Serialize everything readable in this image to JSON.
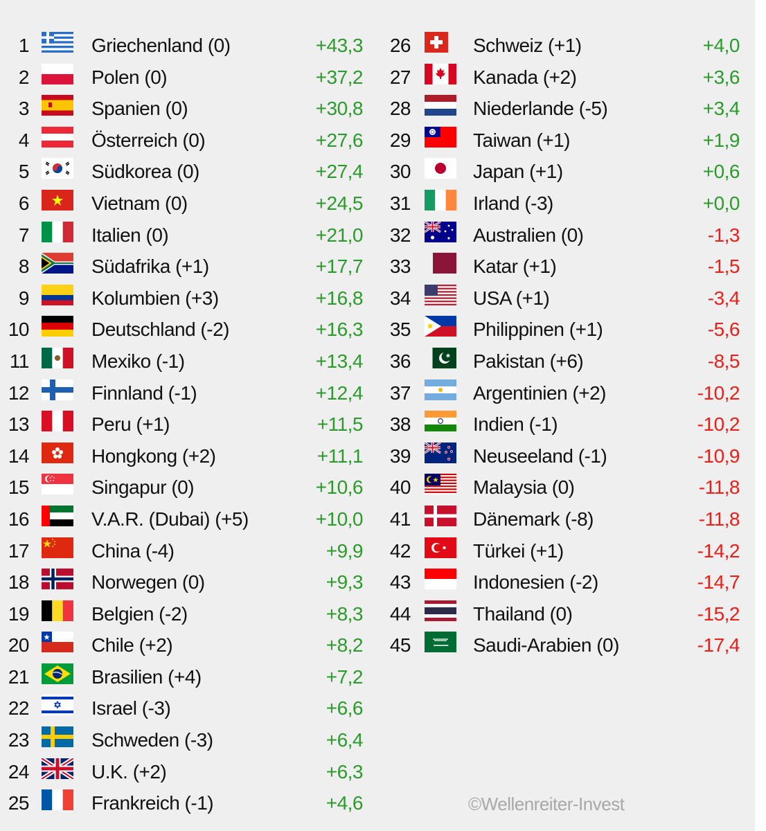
{
  "ranking": [
    {
      "rank": "1",
      "name": "Griechenland (0)",
      "value": "+43,3",
      "flag": "greece-flag-icon"
    },
    {
      "rank": "2",
      "name": "Polen (0)",
      "value": "+37,2",
      "flag": "poland-flag-icon"
    },
    {
      "rank": "3",
      "name": "Spanien (0)",
      "value": "+30,8",
      "flag": "spain-flag-icon"
    },
    {
      "rank": "4",
      "name": "Österreich (0)",
      "value": "+27,6",
      "flag": "austria-flag-icon"
    },
    {
      "rank": "5",
      "name": "Südkorea (0)",
      "value": "+27,4",
      "flag": "south-korea-flag-icon"
    },
    {
      "rank": "6",
      "name": "Vietnam (0)",
      "value": "+24,5",
      "flag": "vietnam-flag-icon"
    },
    {
      "rank": "7",
      "name": "Italien (0)",
      "value": "+21,0",
      "flag": "italy-flag-icon"
    },
    {
      "rank": "8",
      "name": "Südafrika (+1)",
      "value": "+17,7",
      "flag": "south-africa-flag-icon"
    },
    {
      "rank": "9",
      "name": "Kolumbien (+3)",
      "value": "+16,8",
      "flag": "colombia-flag-icon"
    },
    {
      "rank": "10",
      "name": "Deutschland (-2)",
      "value": "+16,3",
      "flag": "germany-flag-icon"
    },
    {
      "rank": "11",
      "name": "Mexiko (-1)",
      "value": "+13,4",
      "flag": "mexico-flag-icon"
    },
    {
      "rank": "12",
      "name": "Finnland (-1)",
      "value": "+12,4",
      "flag": "finland-flag-icon"
    },
    {
      "rank": "13",
      "name": "Peru (+1)",
      "value": "+11,5",
      "flag": "peru-flag-icon"
    },
    {
      "rank": "14",
      "name": "Hongkong (+2)",
      "value": "+11,1",
      "flag": "hong-kong-flag-icon"
    },
    {
      "rank": "15",
      "name": "Singapur (0)",
      "value": "+10,6",
      "flag": "singapore-flag-icon"
    },
    {
      "rank": "16",
      "name": "V.A.R. (Dubai) (+5)",
      "value": "+10,0",
      "flag": "uae-flag-icon"
    },
    {
      "rank": "17",
      "name": "China (-4)",
      "value": "+9,9",
      "flag": "china-flag-icon"
    },
    {
      "rank": "18",
      "name": "Norwegen (0)",
      "value": "+9,3",
      "flag": "norway-flag-icon"
    },
    {
      "rank": "19",
      "name": "Belgien (-2)",
      "value": "+8,3",
      "flag": "belgium-flag-icon"
    },
    {
      "rank": "20",
      "name": "Chile (+2)",
      "value": "+8,2",
      "flag": "chile-flag-icon"
    },
    {
      "rank": "21",
      "name": "Brasilien (+4)",
      "value": "+7,2",
      "flag": "brazil-flag-icon"
    },
    {
      "rank": "22",
      "name": "Israel (-3)",
      "value": "+6,6",
      "flag": "israel-flag-icon"
    },
    {
      "rank": "23",
      "name": "Schweden (-3)",
      "value": "+6,4",
      "flag": "sweden-flag-icon"
    },
    {
      "rank": "24",
      "name": "U.K. (+2)",
      "value": "+6,3",
      "flag": "uk-flag-icon"
    },
    {
      "rank": "25",
      "name": "Frankreich (-1)",
      "value": "+4,6",
      "flag": "france-flag-icon"
    },
    {
      "rank": "26",
      "name": "Schweiz (+1)",
      "value": "+4,0",
      "flag": "switzerland-flag-icon"
    },
    {
      "rank": "27",
      "name": "Kanada (+2)",
      "value": "+3,6",
      "flag": "canada-flag-icon"
    },
    {
      "rank": "28",
      "name": "Niederlande (-5)",
      "value": "+3,4",
      "flag": "netherlands-flag-icon"
    },
    {
      "rank": "29",
      "name": "Taiwan (+1)",
      "value": "+1,9",
      "flag": "taiwan-flag-icon"
    },
    {
      "rank": "30",
      "name": "Japan (+1)",
      "value": "+0,6",
      "flag": "japan-flag-icon"
    },
    {
      "rank": "31",
      "name": "Irland (-3)",
      "value": "+0,0",
      "flag": "ireland-flag-icon"
    },
    {
      "rank": "32",
      "name": "Australien (0)",
      "value": "-1,3",
      "flag": "australia-flag-icon"
    },
    {
      "rank": "33",
      "name": "Katar (+1)",
      "value": "-1,5",
      "flag": "qatar-flag-icon"
    },
    {
      "rank": "34",
      "name": "USA (+1)",
      "value": "-3,4",
      "flag": "usa-flag-icon"
    },
    {
      "rank": "35",
      "name": "Philippinen (+1)",
      "value": "-5,6",
      "flag": "philippines-flag-icon"
    },
    {
      "rank": "36",
      "name": "Pakistan (+6)",
      "value": "-8,5",
      "flag": "pakistan-flag-icon"
    },
    {
      "rank": "37",
      "name": "Argentinien (+2)",
      "value": "-10,2",
      "flag": "argentina-flag-icon"
    },
    {
      "rank": "38",
      "name": "Indien (-1)",
      "value": "-10,2",
      "flag": "india-flag-icon"
    },
    {
      "rank": "39",
      "name": "Neuseeland (-1)",
      "value": "-10,9",
      "flag": "new-zealand-flag-icon"
    },
    {
      "rank": "40",
      "name": "Malaysia (0)",
      "value": "-11,8",
      "flag": "malaysia-flag-icon"
    },
    {
      "rank": "41",
      "name": "Dänemark (-8)",
      "value": "-11,8",
      "flag": "denmark-flag-icon"
    },
    {
      "rank": "42",
      "name": "Türkei (+1)",
      "value": "-14,2",
      "flag": "turkey-flag-icon"
    },
    {
      "rank": "43",
      "name": "Indonesien (-2)",
      "value": "-14,7",
      "flag": "indonesia-flag-icon"
    },
    {
      "rank": "44",
      "name": "Thailand (0)",
      "value": "-15,2",
      "flag": "thailand-flag-icon"
    },
    {
      "rank": "45",
      "name": "Saudi-Arabien (0)",
      "value": "-17,4",
      "flag": "saudi-arabia-flag-icon"
    }
  ],
  "copyright": "©Wellenreiter-Invest",
  "colors": {
    "positive": "#2c9a2c",
    "negative": "#e8201a",
    "background": "#efefef",
    "copyright": "#a8a8a8"
  }
}
